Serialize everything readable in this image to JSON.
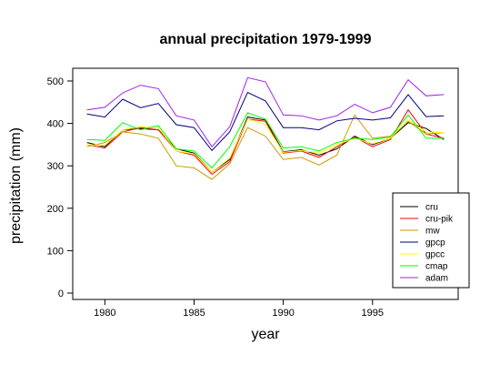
{
  "chart_data": {
    "type": "line",
    "title": "annual precipitation 1979-1999",
    "xlabel": "year",
    "ylabel": "precipitation (mm)",
    "xlim": [
      1978.2,
      1999.8
    ],
    "ylim": [
      -15,
      530
    ],
    "xticks": [
      1980,
      1985,
      1990,
      1995
    ],
    "yticks": [
      0,
      100,
      200,
      300,
      400,
      500
    ],
    "grid": false,
    "legend_position": "bottom-right",
    "x": [
      1979,
      1980,
      1981,
      1982,
      1983,
      1984,
      1985,
      1986,
      1987,
      1988,
      1989,
      1990,
      1991,
      1992,
      1993,
      1994,
      1995,
      1996,
      1997,
      1998,
      1999
    ],
    "series": [
      {
        "name": "cru",
        "color": "#000000",
        "values": [
          355,
          345,
          385,
          388,
          385,
          340,
          330,
          285,
          315,
          415,
          408,
          333,
          338,
          325,
          340,
          370,
          350,
          365,
          402,
          388,
          362
        ]
      },
      {
        "name": "cru-pik",
        "color": "#ff0000",
        "values": [
          350,
          342,
          380,
          390,
          385,
          335,
          325,
          280,
          310,
          410,
          405,
          330,
          335,
          320,
          345,
          368,
          345,
          362,
          432,
          375,
          365
        ]
      },
      {
        "name": "mw",
        "color": "#cc9900",
        "values": [
          345,
          355,
          380,
          375,
          365,
          300,
          295,
          268,
          305,
          390,
          370,
          315,
          320,
          302,
          325,
          420,
          365,
          370,
          405,
          375,
          378
        ]
      },
      {
        "name": "gpcp",
        "color": "#000080",
        "values": [
          422,
          415,
          457,
          437,
          447,
          397,
          390,
          336,
          380,
          473,
          453,
          390,
          390,
          385,
          406,
          412,
          408,
          413,
          468,
          416,
          418
        ]
      },
      {
        "name": "gpcc",
        "color": "#ffff00",
        "values": [
          350,
          348,
          385,
          392,
          390,
          335,
          328,
          285,
          318,
          410,
          398,
          332,
          336,
          330,
          350,
          365,
          352,
          365,
          408,
          380,
          378
        ]
      },
      {
        "name": "cmap",
        "color": "#00ff00",
        "values": [
          362,
          360,
          402,
          385,
          395,
          340,
          335,
          295,
          345,
          425,
          410,
          342,
          345,
          335,
          355,
          365,
          362,
          368,
          420,
          365,
          365
        ]
      },
      {
        "name": "adam",
        "color": "#a020f0",
        "values": [
          432,
          438,
          472,
          490,
          482,
          418,
          408,
          345,
          392,
          508,
          498,
          420,
          418,
          408,
          418,
          445,
          425,
          438,
          503,
          465,
          468
        ]
      }
    ]
  }
}
